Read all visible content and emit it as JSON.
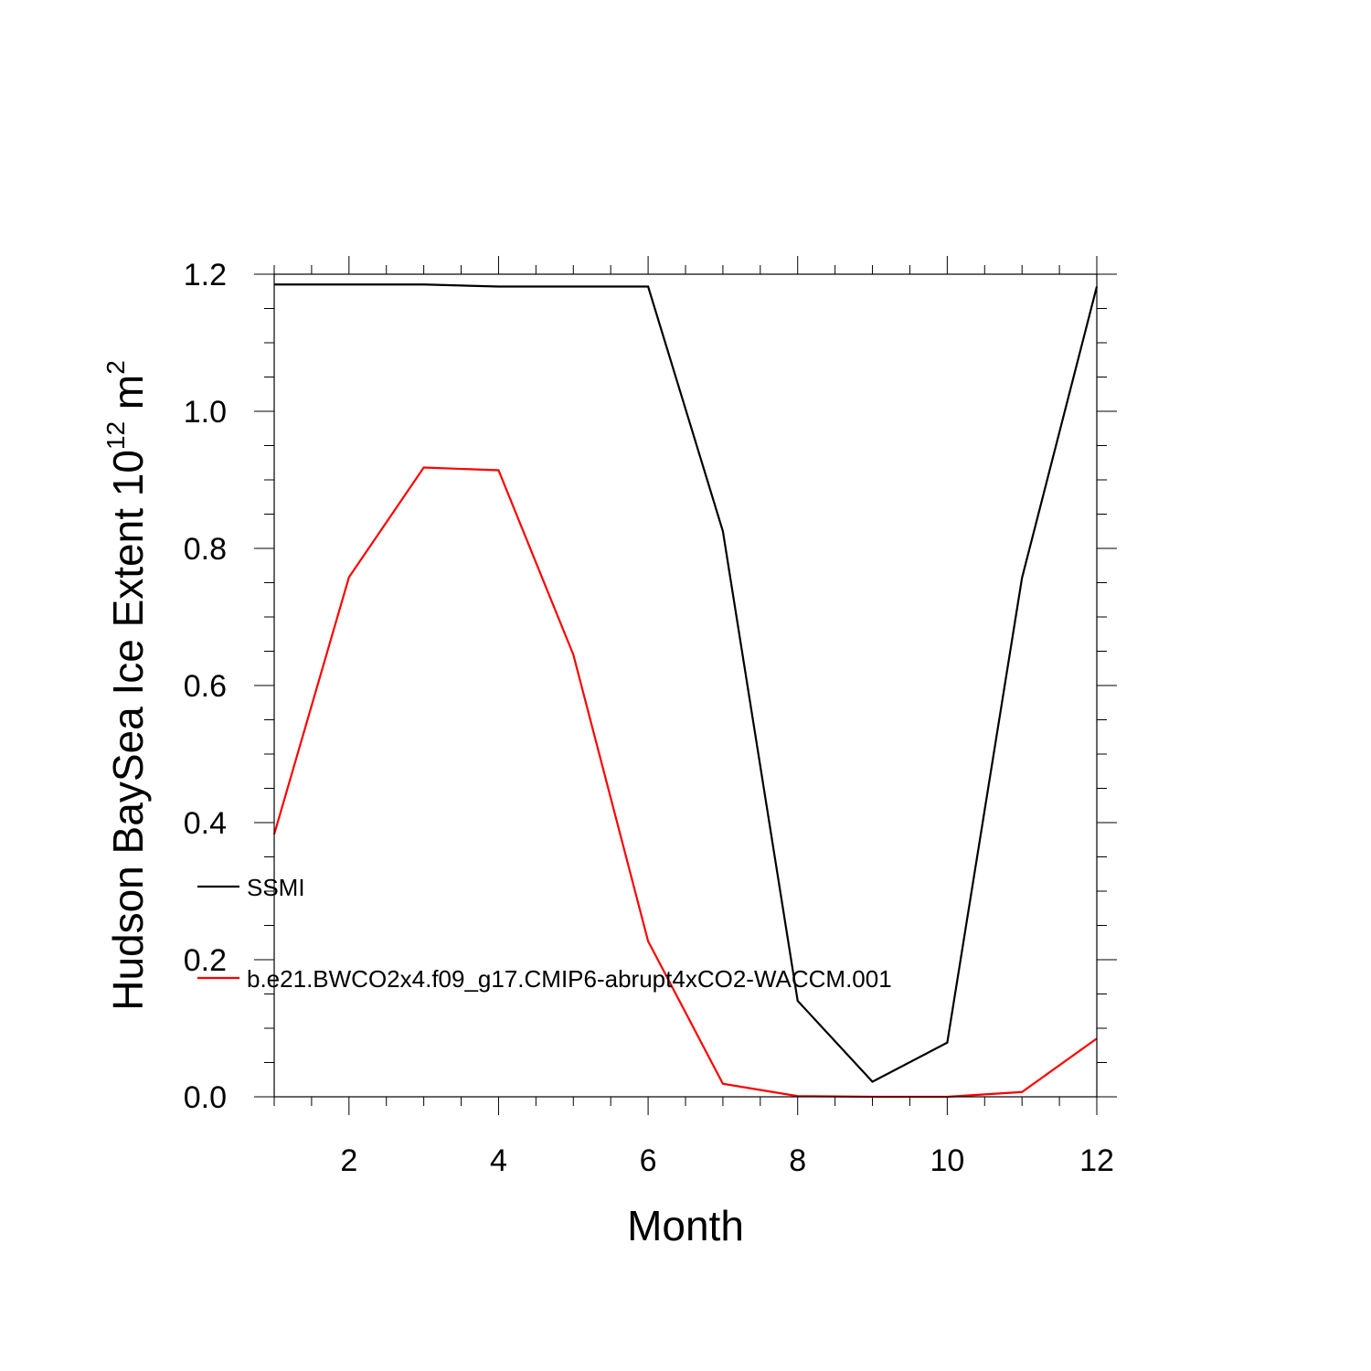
{
  "chart_data": {
    "type": "line",
    "title": "",
    "xlabel": "Month",
    "ylabel": "Hudson BaySea Ice Extent 10",
    "ylabel_superscript": "12",
    "ylabel_unit": " m",
    "ylabel_unit_superscript": "2",
    "xlim": [
      1,
      12
    ],
    "ylim": [
      0.0,
      1.2
    ],
    "x_ticks": [
      2,
      4,
      6,
      8,
      10,
      12
    ],
    "x_tick_labels": [
      "2",
      "4",
      "6",
      "8",
      "10",
      "12"
    ],
    "y_ticks": [
      0.0,
      0.2,
      0.4,
      0.6,
      0.8,
      1.0,
      1.2
    ],
    "y_tick_labels": [
      "0.0",
      "0.2",
      "0.4",
      "0.6",
      "0.8",
      "1.0",
      "1.2"
    ],
    "grid": false,
    "legend_position": "inside-left",
    "x": [
      1,
      2,
      3,
      4,
      5,
      6,
      7,
      8,
      9,
      10,
      11,
      12
    ],
    "series": [
      {
        "name": "SSMI",
        "color": "#000000",
        "values": [
          1.185,
          1.185,
          1.185,
          1.182,
          1.182,
          1.182,
          0.825,
          0.14,
          0.022,
          0.079,
          0.757,
          1.182
        ]
      },
      {
        "name": "b.e21.BWCO2x4.f09_g17.CMIP6-abrupt4xCO2-WACCM.001",
        "color": "#ff0000",
        "values": [
          0.383,
          0.758,
          0.918,
          0.914,
          0.645,
          0.227,
          0.019,
          0.001,
          0.0,
          0.0,
          0.007,
          0.085
        ]
      }
    ]
  }
}
